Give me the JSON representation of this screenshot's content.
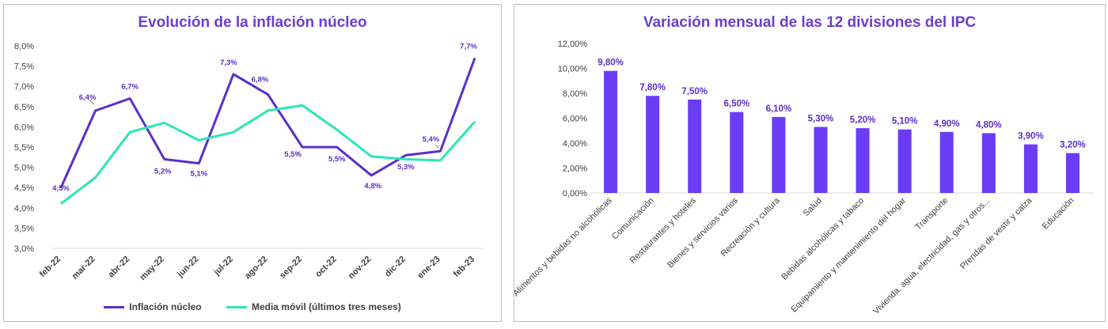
{
  "chart_data": [
    {
      "type": "line",
      "title": "Evolución de la inflación núcleo",
      "categories": [
        "feb-22",
        "mar-22",
        "abr-22",
        "may-22",
        "jun-22",
        "jul-22",
        "ago-22",
        "sep-22",
        "oct-22",
        "nov-22",
        "dic-22",
        "ene-23",
        "feb-23"
      ],
      "y_ticks": [
        "3,0%",
        "3,5%",
        "4,0%",
        "4,5%",
        "5,0%",
        "5,5%",
        "6,0%",
        "6,5%",
        "7,0%",
        "7,5%",
        "8,0%"
      ],
      "ylim": [
        3.0,
        8.0
      ],
      "series": [
        {
          "name": "Inflación núcleo",
          "color": "#5b2fc7",
          "values": [
            4.5,
            6.4,
            6.7,
            5.2,
            5.1,
            7.3,
            6.8,
            5.5,
            5.5,
            4.8,
            5.3,
            5.4,
            7.7
          ],
          "labels": [
            "4,5%",
            "6,4%",
            "6,7%",
            "5,2%",
            "5,1%",
            "7,3%",
            "6,8%",
            "5,5%",
            "5,5%",
            "4,8%",
            "5,3%",
            "5,4%",
            "7,7%"
          ]
        },
        {
          "name": "Media móvil (últimos tres meses)",
          "color": "#2ee6b4",
          "values": [
            4.1,
            4.75,
            5.87,
            6.1,
            5.67,
            5.87,
            6.4,
            6.53,
            5.93,
            5.27,
            5.2,
            5.17,
            6.13
          ]
        }
      ],
      "legend": "bottom"
    },
    {
      "type": "bar",
      "title": "Variación mensual de las 12 divisiones del IPC",
      "categories": [
        "Alimentos y bebidas no alcohólicas",
        "Comunicación",
        "Restaurantes y hoteles",
        "Bienes y servicios varios",
        "Recreación y cultura",
        "Salud",
        "Bebidas alcohólicas y tabaco",
        "Equipamiento y mantenimiento del hogar",
        "Transporte",
        "Vivienda, agua, electricidad, gas y otros...",
        "Prendas de vestir y calza",
        "Educación"
      ],
      "values": [
        9.8,
        7.8,
        7.5,
        6.5,
        6.1,
        5.3,
        5.2,
        5.1,
        4.9,
        4.8,
        3.9,
        3.2
      ],
      "labels": [
        "9,80%",
        "7,80%",
        "7,50%",
        "6,50%",
        "6,10%",
        "5,30%",
        "5,20%",
        "5,10%",
        "4,90%",
        "4,80%",
        "3,90%",
        "3,20%"
      ],
      "y_ticks": [
        "0,00%",
        "2,00%",
        "4,00%",
        "6,00%",
        "8,00%",
        "10,00%",
        "12,00%"
      ],
      "ylim": [
        0,
        12
      ],
      "color": "#6a3cf5"
    }
  ]
}
